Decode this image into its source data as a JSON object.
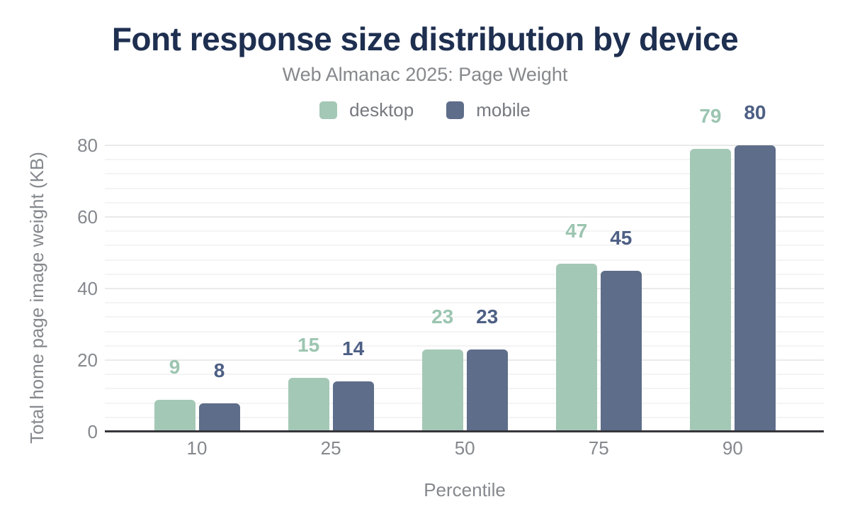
{
  "title": "Font response size distribution by device",
  "subtitle": "Web Almanac 2025: Page Weight",
  "legend": {
    "items": [
      {
        "label": "desktop",
        "color": "#a4c8b6"
      },
      {
        "label": "mobile",
        "color": "#5e6d89"
      }
    ]
  },
  "colors": {
    "title_navy": "#1e2f50",
    "axis_gray": "#85888d",
    "baseline": "#36363b",
    "grid_major": "#eaeaea",
    "grid_minor": "#f4f4f4",
    "desktop_bar": "#a4c8b6",
    "desktop_label": "#9cc5b1",
    "mobile_bar": "#5e6d89",
    "mobile_label": "#4d5f84"
  },
  "chart_data": {
    "type": "bar",
    "title": "Font response size distribution by device",
    "subtitle": "Web Almanac 2025: Page Weight",
    "categories": [
      "10",
      "25",
      "50",
      "75",
      "90"
    ],
    "series": [
      {
        "name": "desktop",
        "values": [
          9,
          15,
          23,
          47,
          79
        ],
        "color": "#a4c8b6",
        "label_color": "#9cc5b1"
      },
      {
        "name": "mobile",
        "values": [
          8,
          14,
          23,
          45,
          80
        ],
        "color": "#5e6d89",
        "label_color": "#4d5f84"
      }
    ],
    "xlabel": "Percentile",
    "ylabel": "Total home page image weight (KB)",
    "ylim": [
      0,
      80
    ],
    "yticks": [
      0,
      20,
      40,
      60,
      80
    ],
    "minor_grid_step_kb": 4,
    "grid": "on",
    "legend_position": "top",
    "value_labels": true
  }
}
